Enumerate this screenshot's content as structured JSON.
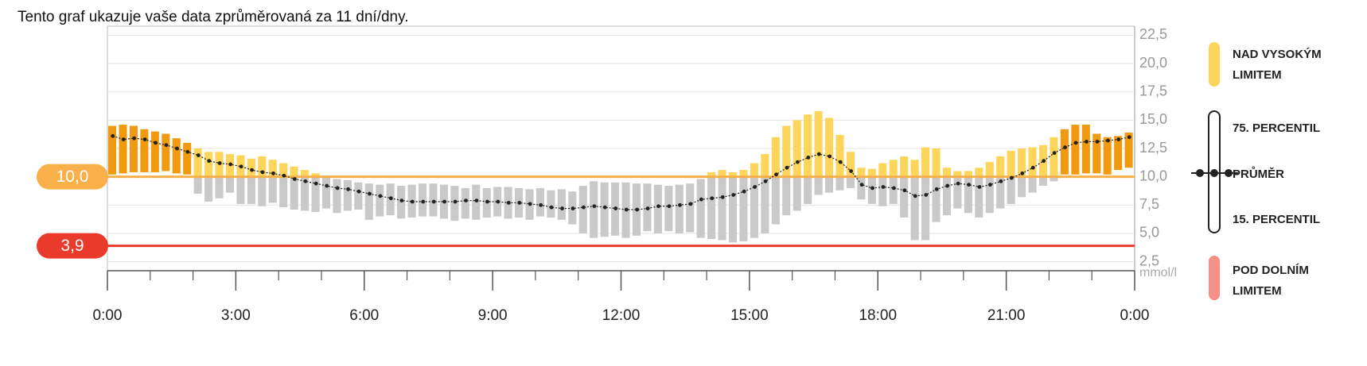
{
  "chart_data": {
    "type": "percentile",
    "title": "Tento graf ukazuje vaše data zprůměrovaná za 11 dní/dny.",
    "y_unit": "mmol/l",
    "xlim": [
      0,
      24
    ],
    "xticks": [
      {
        "value": 0,
        "label": "0:00"
      },
      {
        "value": 3,
        "label": "3:00"
      },
      {
        "value": 6,
        "label": "6:00"
      },
      {
        "value": 9,
        "label": "9:00"
      },
      {
        "value": 12,
        "label": "12:00"
      },
      {
        "value": 15,
        "label": "15:00"
      },
      {
        "value": 18,
        "label": "18:00"
      },
      {
        "value": 21,
        "label": "21:00"
      },
      {
        "value": 24,
        "label": "0:00"
      }
    ],
    "xticks_minor": [
      1,
      2,
      4,
      5,
      7,
      8,
      10,
      11,
      13,
      14,
      16,
      17,
      19,
      20,
      22,
      23
    ],
    "ylim": [
      1.7,
      23.3
    ],
    "yticks": [
      {
        "value": 2.5,
        "label": "2,5"
      },
      {
        "value": 5,
        "label": "5,0"
      },
      {
        "value": 7.5,
        "label": "7,5"
      },
      {
        "value": 10,
        "label": "10,0"
      },
      {
        "value": 12.5,
        "label": "12,5"
      },
      {
        "value": 15,
        "label": "15,0"
      },
      {
        "value": 17.5,
        "label": "17,5"
      },
      {
        "value": 20,
        "label": "20,0"
      },
      {
        "value": 22.5,
        "label": "22,5"
      }
    ],
    "grid": true,
    "limits": {
      "high": {
        "value": 10,
        "label": "10,0",
        "legend": "NAD VYSOKÝM LIMITEM",
        "color": "#f9b04b",
        "bar_color": "#fdd55a",
        "full_color": "#f29a0f"
      },
      "low": {
        "value": 3.9,
        "label": "3,9",
        "legend": "POD DOLNÍM LIMITEM",
        "color": "#ea3a2c",
        "legend_color": "#f59087"
      }
    },
    "bar_color": "#c9c9c9",
    "x": [
      0,
      0.25,
      0.5,
      0.75,
      1,
      1.25,
      1.5,
      1.75,
      2,
      2.25,
      2.5,
      2.75,
      3,
      3.25,
      3.5,
      3.75,
      4,
      4.25,
      4.5,
      4.75,
      5,
      5.25,
      5.5,
      5.75,
      6,
      6.25,
      6.5,
      6.75,
      7,
      7.25,
      7.5,
      7.75,
      8,
      8.25,
      8.5,
      8.75,
      9,
      9.25,
      9.5,
      9.75,
      10,
      10.25,
      10.5,
      10.75,
      11,
      11.25,
      11.5,
      11.75,
      12,
      12.25,
      12.5,
      12.75,
      13,
      13.25,
      13.5,
      13.75,
      14,
      14.25,
      14.5,
      14.75,
      15,
      15.25,
      15.5,
      15.75,
      16,
      16.25,
      16.5,
      16.75,
      17,
      17.25,
      17.5,
      17.75,
      18,
      18.25,
      18.5,
      18.75,
      19,
      19.25,
      19.5,
      19.75,
      20,
      20.25,
      20.5,
      20.75,
      21,
      21.25,
      21.5,
      21.75,
      22,
      22.25,
      22.5,
      22.75,
      23,
      23.25,
      23.5,
      23.75
    ],
    "series": [
      {
        "name": "75. PERCENTIL",
        "values": [
          14.5,
          14.6,
          14.5,
          14.2,
          14.0,
          13.8,
          13.4,
          13.0,
          12.5,
          12.2,
          12.2,
          12.0,
          11.9,
          11.6,
          11.8,
          11.5,
          11.2,
          10.9,
          10.6,
          10.3,
          10.0,
          9.8,
          9.7,
          9.5,
          9.4,
          9.3,
          9.4,
          9.2,
          9.3,
          9.4,
          9.4,
          9.3,
          9.2,
          9.0,
          9.3,
          9.0,
          9.1,
          9.1,
          9.0,
          8.9,
          9.0,
          8.8,
          8.9,
          8.7,
          9.2,
          9.6,
          9.5,
          9.5,
          9.5,
          9.4,
          9.4,
          9.3,
          9.2,
          9.3,
          9.4,
          9.8,
          10.4,
          10.6,
          10.4,
          10.6,
          11.2,
          12.0,
          13.5,
          14.5,
          15.0,
          15.5,
          15.8,
          15.2,
          13.7,
          12.2,
          10.8,
          10.7,
          11.2,
          11.5,
          11.8,
          11.5,
          12.6,
          12.5,
          10.8,
          10.5,
          10.5,
          10.8,
          11.3,
          11.8,
          12.3,
          12.5,
          12.6,
          12.8,
          13.5,
          14.2,
          14.6,
          14.6,
          13.8,
          13.5,
          13.6,
          13.9
        ]
      },
      {
        "name": "15. PERCENTIL",
        "values": [
          10.2,
          10.3,
          10.4,
          10.4,
          10.4,
          10.5,
          10.3,
          10.2,
          8.5,
          7.8,
          8.1,
          8.6,
          7.6,
          7.6,
          7.4,
          7.7,
          7.3,
          7.1,
          7.0,
          6.9,
          7.2,
          6.8,
          7.0,
          7.1,
          6.2,
          6.5,
          6.6,
          6.3,
          6.4,
          6.5,
          6.5,
          6.3,
          6.1,
          6.3,
          6.2,
          6.4,
          6.5,
          6.3,
          6.4,
          6.2,
          6.5,
          6.4,
          6.2,
          5.8,
          5.0,
          4.6,
          4.7,
          4.8,
          4.6,
          4.8,
          5.2,
          5.0,
          5.2,
          5.0,
          5.1,
          4.6,
          4.5,
          4.4,
          4.2,
          4.3,
          4.6,
          5.0,
          5.8,
          6.6,
          7.0,
          7.6,
          8.4,
          8.6,
          8.8,
          9.0,
          8.0,
          7.6,
          7.4,
          7.6,
          6.4,
          4.4,
          4.4,
          6.0,
          6.6,
          7.2,
          6.8,
          6.4,
          6.8,
          7.2,
          7.6,
          8.2,
          8.6,
          9.2,
          9.6,
          10.2,
          10.2,
          10.3,
          10.3,
          10.2,
          10.6,
          10.8
        ]
      },
      {
        "name": "PRŮMĚR",
        "color": "#222222",
        "values": [
          13.6,
          13.3,
          13.4,
          13.3,
          13.0,
          12.8,
          12.5,
          12.2,
          11.9,
          11.4,
          11.2,
          11.1,
          10.9,
          10.6,
          10.4,
          10.3,
          10.1,
          9.8,
          9.6,
          9.4,
          9.2,
          9.0,
          8.9,
          8.7,
          8.5,
          8.3,
          8.1,
          7.9,
          7.8,
          7.8,
          7.8,
          7.8,
          7.8,
          7.9,
          7.9,
          7.8,
          7.8,
          7.7,
          7.7,
          7.6,
          7.5,
          7.3,
          7.2,
          7.2,
          7.3,
          7.4,
          7.3,
          7.2,
          7.1,
          7.1,
          7.2,
          7.4,
          7.4,
          7.5,
          7.6,
          8.0,
          8.1,
          8.2,
          8.4,
          8.7,
          9.1,
          9.6,
          10.2,
          10.8,
          11.3,
          11.7,
          12.0,
          11.8,
          11.3,
          10.5,
          9.3,
          9.0,
          9.1,
          9.0,
          8.8,
          8.3,
          8.4,
          8.9,
          9.2,
          9.4,
          9.3,
          9.1,
          9.3,
          9.6,
          9.9,
          10.3,
          10.8,
          11.4,
          12.1,
          12.6,
          13.0,
          13.1,
          13.1,
          13.2,
          13.3,
          13.5
        ]
      }
    ]
  }
}
